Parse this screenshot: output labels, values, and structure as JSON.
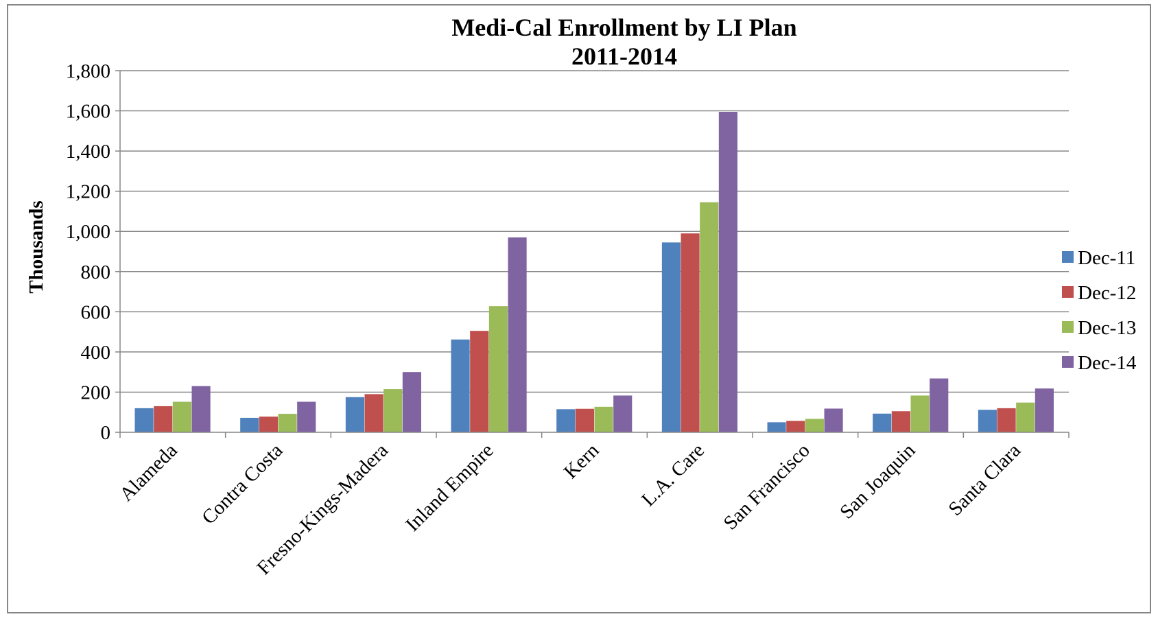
{
  "chart_data": {
    "type": "bar",
    "title": "Medi-Cal Enrollment by LI Plan",
    "subtitle": "2011-2014",
    "xlabel": "",
    "ylabel": "Thousands",
    "ylim": [
      0,
      1800
    ],
    "yticks": [
      0,
      200,
      400,
      600,
      800,
      1000,
      1200,
      1400,
      1600,
      1800
    ],
    "ytick_labels": [
      "0",
      "200",
      "400",
      "600",
      "800",
      "1,000",
      "1,200",
      "1,400",
      "1,600",
      "1,800"
    ],
    "grid": true,
    "legend_position": "right",
    "categories": [
      "Alameda",
      "Contra Costa",
      "Fresno-Kings-Madera",
      "Inland Empire",
      "Kern",
      "L.A. Care",
      "San Francisco",
      "San Joaquin",
      "Santa Clara"
    ],
    "series": [
      {
        "name": "Dec-11",
        "color": "#4F81BD",
        "values": [
          120,
          72,
          175,
          462,
          115,
          945,
          50,
          93,
          112
        ]
      },
      {
        "name": "Dec-12",
        "color": "#C0504D",
        "values": [
          130,
          78,
          190,
          505,
          117,
          990,
          57,
          105,
          120
        ]
      },
      {
        "name": "Dec-13",
        "color": "#9BBB59",
        "values": [
          152,
          92,
          215,
          628,
          127,
          1145,
          67,
          183,
          148
        ]
      },
      {
        "name": "Dec-14",
        "color": "#8064A2",
        "values": [
          230,
          152,
          300,
          970,
          183,
          1595,
          118,
          268,
          218
        ]
      }
    ]
  }
}
